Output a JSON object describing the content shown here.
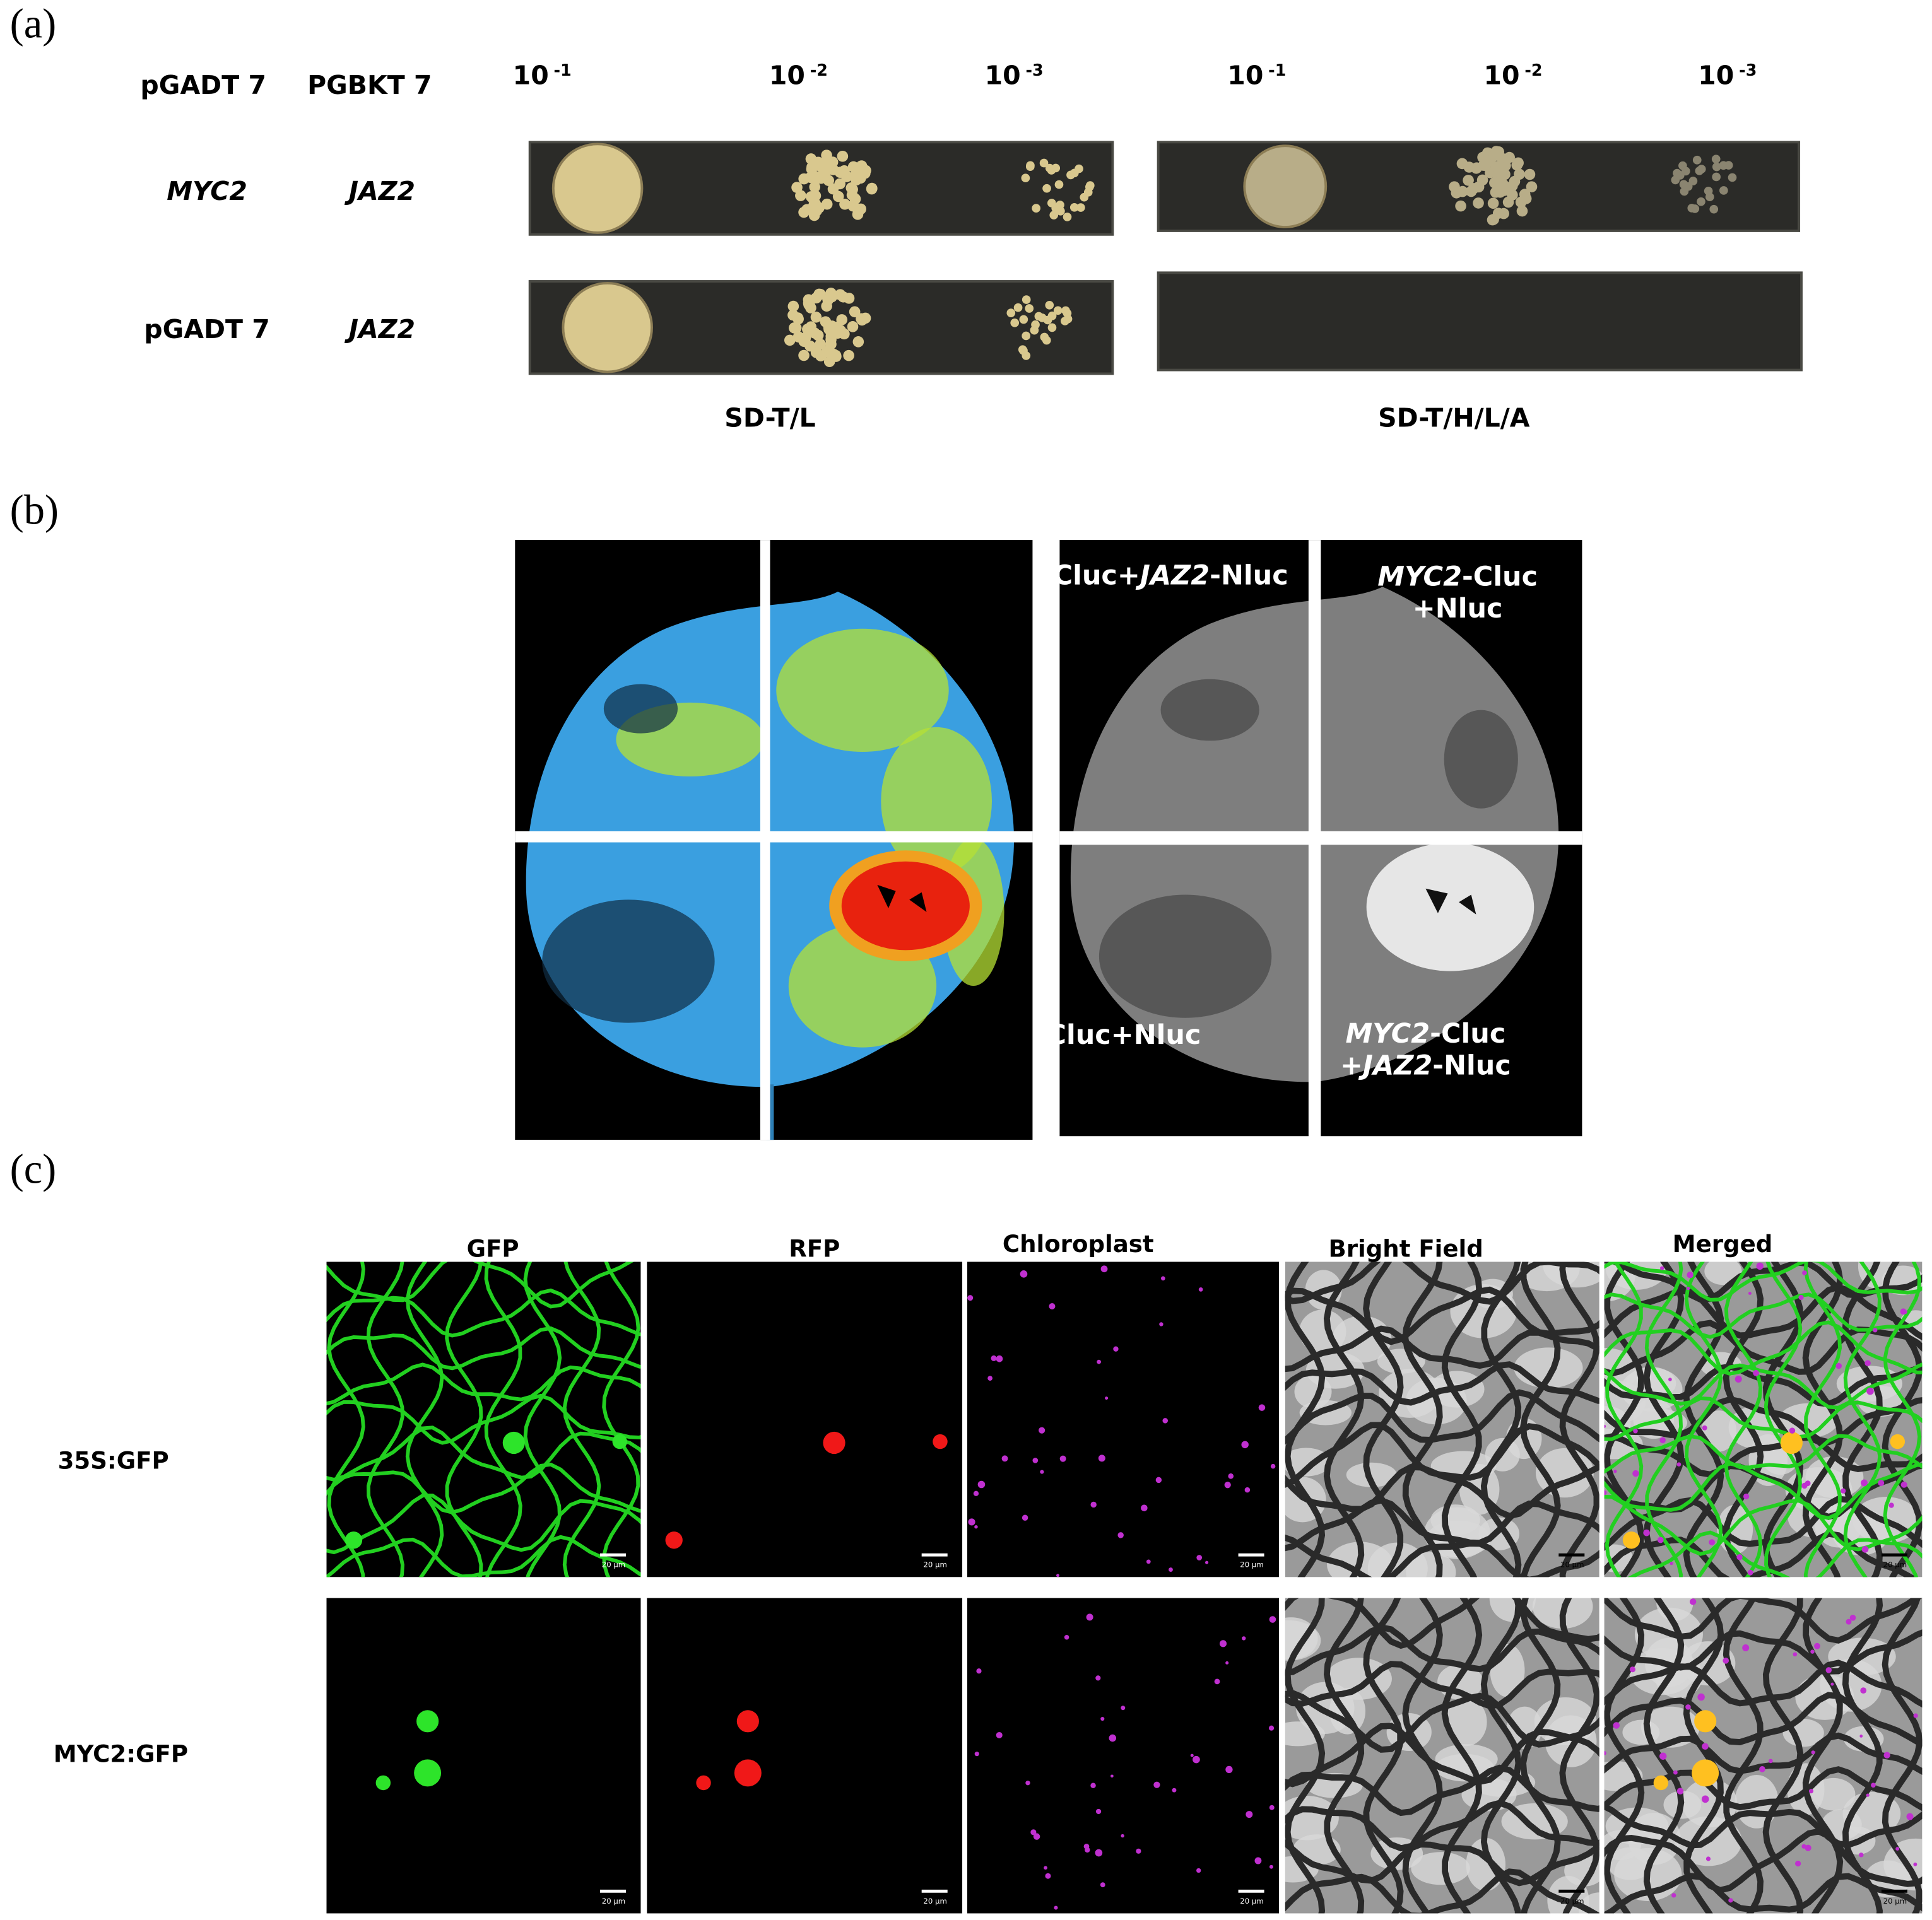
{
  "panel_a": {
    "label": "(a)",
    "headers": [
      "pGADT 7",
      "PGBKT 7"
    ],
    "dilutions": [
      {
        "base": "10",
        "exp": "-1"
      },
      {
        "base": "10",
        "exp": "-2"
      },
      {
        "base": "10",
        "exp": "-3"
      },
      {
        "base": "10",
        "exp": "-1"
      },
      {
        "base": "10",
        "exp": "-2"
      },
      {
        "base": "10",
        "exp": "-3"
      }
    ],
    "rows": [
      {
        "prey": {
          "text": "MYC2",
          "italic": true
        },
        "bait": {
          "text": "JAZ2",
          "italic": true
        }
      },
      {
        "prey": {
          "text": "pGADT 7",
          "italic": false
        },
        "bait": {
          "text": "JAZ2",
          "italic": true
        }
      }
    ],
    "media": [
      "SD-T/L",
      "SD-T/H/L/A"
    ]
  },
  "panel_b": {
    "label": "(b)",
    "labels": [
      [
        [
          {
            "text": "Cluc+"
          },
          {
            "text": "JAZ2",
            "italic": true
          },
          {
            "text": "-Nluc"
          }
        ]
      ],
      [
        [
          {
            "text": "MYC2",
            "italic": true
          },
          {
            "text": "-Cluc"
          }
        ],
        [
          {
            "text": "+Nluc"
          }
        ]
      ],
      [
        [
          {
            "text": "Cluc+Nluc"
          }
        ]
      ],
      [
        [
          {
            "text": "MYC2",
            "italic": true
          },
          {
            "text": "-Cluc"
          }
        ],
        [
          {
            "text": "+"
          },
          {
            "text": "JAZ2",
            "italic": true
          },
          {
            "text": "-Nluc"
          }
        ]
      ]
    ]
  },
  "panel_c": {
    "label": "(c)",
    "columns": [
      "GFP",
      "RFP",
      "Chloroplast",
      "Bright  Field",
      "Merged"
    ],
    "rows": [
      "35S:GFP",
      "MYC2:GFP"
    ],
    "scale_bar": "20 μm"
  }
}
